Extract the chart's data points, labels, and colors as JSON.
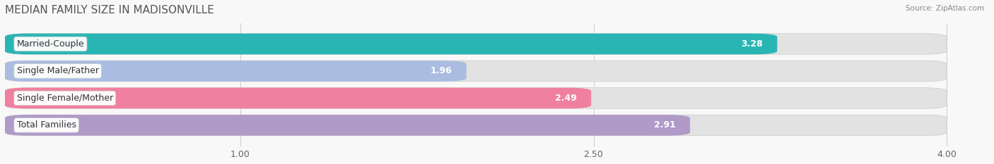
{
  "title": "MEDIAN FAMILY SIZE IN MADISONVILLE",
  "source": "Source: ZipAtlas.com",
  "categories": [
    "Married-Couple",
    "Single Male/Father",
    "Single Female/Mother",
    "Total Families"
  ],
  "values": [
    3.28,
    1.96,
    2.49,
    2.91
  ],
  "bar_colors": [
    "#2ab5b5",
    "#aabde0",
    "#f080a0",
    "#b09ac8"
  ],
  "xlim": [
    0.0,
    4.2
  ],
  "xmin": 0.0,
  "xmax": 4.0,
  "xticks": [
    1.0,
    2.5,
    4.0
  ],
  "xlabel_fontsize": 9,
  "title_fontsize": 11,
  "background_color": "#f8f8f8",
  "bar_background_color": "#e2e2e2",
  "label_fontsize": 9,
  "value_fontsize": 9
}
